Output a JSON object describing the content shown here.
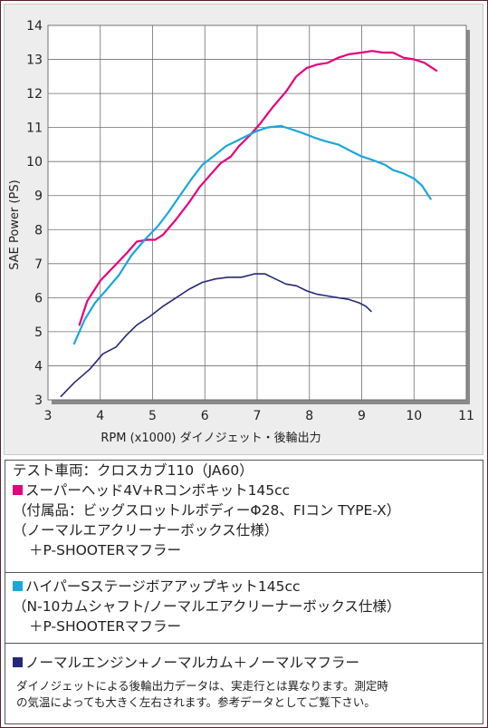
{
  "chart_data": {
    "type": "line",
    "xlabel": "RPM (x1000) ダイノジェット・後輪出力",
    "ylabel": "SAE Power (PS)",
    "xlim": [
      3,
      11
    ],
    "ylim": [
      3,
      14
    ],
    "x_ticks": [
      "3",
      "4",
      "5",
      "6",
      "7",
      "8",
      "9",
      "10",
      "11"
    ],
    "y_ticks": [
      "3",
      "4",
      "5",
      "6",
      "7",
      "8",
      "9",
      "10",
      "11",
      "12",
      "13",
      "14"
    ],
    "grid": true,
    "series": [
      {
        "color": "#e6007e",
        "points": [
          [
            3.6,
            5.2
          ],
          [
            3.75,
            5.9
          ],
          [
            4.0,
            6.5
          ],
          [
            4.25,
            6.9
          ],
          [
            4.5,
            7.3
          ],
          [
            4.7,
            7.65
          ],
          [
            4.9,
            7.7
          ],
          [
            5.05,
            7.7
          ],
          [
            5.2,
            7.85
          ],
          [
            5.45,
            8.3
          ],
          [
            5.7,
            8.8
          ],
          [
            5.9,
            9.25
          ],
          [
            6.1,
            9.6
          ],
          [
            6.3,
            9.95
          ],
          [
            6.5,
            10.15
          ],
          [
            6.65,
            10.45
          ],
          [
            6.85,
            10.75
          ],
          [
            7.05,
            11.1
          ],
          [
            7.3,
            11.6
          ],
          [
            7.55,
            12.05
          ],
          [
            7.75,
            12.5
          ],
          [
            7.95,
            12.75
          ],
          [
            8.15,
            12.85
          ],
          [
            8.35,
            12.9
          ],
          [
            8.55,
            13.05
          ],
          [
            8.75,
            13.15
          ],
          [
            9.0,
            13.2
          ],
          [
            9.2,
            13.25
          ],
          [
            9.4,
            13.2
          ],
          [
            9.6,
            13.2
          ],
          [
            9.8,
            13.05
          ],
          [
            10.0,
            13.0
          ],
          [
            10.2,
            12.9
          ],
          [
            10.43,
            12.67
          ]
        ]
      },
      {
        "color": "#1aa7dc",
        "points": [
          [
            3.5,
            4.65
          ],
          [
            3.7,
            5.35
          ],
          [
            3.9,
            5.85
          ],
          [
            4.1,
            6.2
          ],
          [
            4.35,
            6.65
          ],
          [
            4.6,
            7.25
          ],
          [
            4.85,
            7.7
          ],
          [
            5.1,
            8.1
          ],
          [
            5.3,
            8.5
          ],
          [
            5.5,
            8.95
          ],
          [
            5.75,
            9.5
          ],
          [
            5.95,
            9.9
          ],
          [
            6.2,
            10.2
          ],
          [
            6.4,
            10.45
          ],
          [
            6.6,
            10.6
          ],
          [
            6.8,
            10.75
          ],
          [
            7.0,
            10.9
          ],
          [
            7.2,
            11.0
          ],
          [
            7.45,
            11.05
          ],
          [
            7.65,
            10.95
          ],
          [
            7.85,
            10.85
          ],
          [
            8.1,
            10.7
          ],
          [
            8.3,
            10.6
          ],
          [
            8.55,
            10.5
          ],
          [
            8.8,
            10.3
          ],
          [
            9.0,
            10.15
          ],
          [
            9.2,
            10.05
          ],
          [
            9.45,
            9.9
          ],
          [
            9.6,
            9.75
          ],
          [
            9.8,
            9.65
          ],
          [
            10.0,
            9.5
          ],
          [
            10.15,
            9.3
          ],
          [
            10.32,
            8.9
          ]
        ]
      },
      {
        "color": "#252878",
        "points": [
          [
            3.25,
            3.1
          ],
          [
            3.5,
            3.5
          ],
          [
            3.8,
            3.9
          ],
          [
            4.05,
            4.35
          ],
          [
            4.3,
            4.55
          ],
          [
            4.5,
            4.9
          ],
          [
            4.7,
            5.2
          ],
          [
            4.95,
            5.45
          ],
          [
            5.2,
            5.75
          ],
          [
            5.45,
            6.0
          ],
          [
            5.7,
            6.25
          ],
          [
            5.95,
            6.45
          ],
          [
            6.2,
            6.55
          ],
          [
            6.45,
            6.6
          ],
          [
            6.7,
            6.6
          ],
          [
            6.95,
            6.7
          ],
          [
            7.15,
            6.7
          ],
          [
            7.35,
            6.55
          ],
          [
            7.55,
            6.4
          ],
          [
            7.75,
            6.35
          ],
          [
            7.95,
            6.2
          ],
          [
            8.15,
            6.1
          ],
          [
            8.35,
            6.05
          ],
          [
            8.55,
            6.0
          ],
          [
            8.75,
            5.95
          ],
          [
            8.95,
            5.85
          ],
          [
            9.08,
            5.75
          ],
          [
            9.18,
            5.6
          ]
        ]
      }
    ]
  },
  "legend": {
    "test_vehicle": "テスト車両：クロスカブ110（JA60）",
    "a": {
      "color": "#e6007e",
      "title": "スーパーヘッド4V+Rコンボキット145cc",
      "line2": "（付属品：ビッグスロットルボディーΦ28、FIコン TYPE-X）",
      "line3": "（ノーマルエアクリーナーボックス仕様）",
      "line4": "＋P-SHOOTERマフラー"
    },
    "b": {
      "color": "#1aa7dc",
      "title": "ハイパーSステージボアアップキット145cc",
      "line2": "（N-10カムシャフト/ノーマルエアクリーナーボックス仕様）",
      "line3": "＋P-SHOOTERマフラー"
    },
    "c": {
      "color": "#252878",
      "title": "ノーマルエンジン+ノーマルカム＋ノーマルマフラー"
    },
    "note1": "ダイノジェットによる後輪出力データは、実走行とは異なります。測定時",
    "note2": "の気温によっても大きく左右されます。参考データとしてご覧下さい。"
  }
}
